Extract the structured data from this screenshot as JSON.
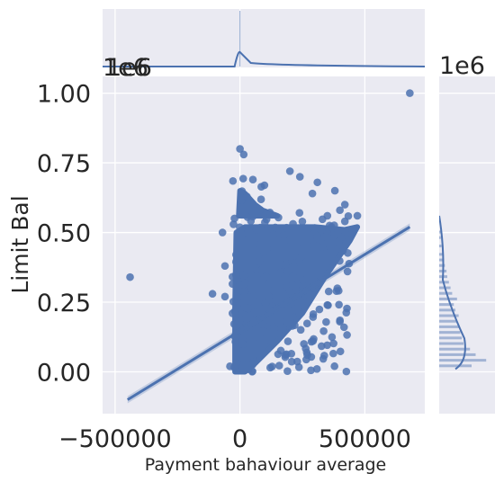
{
  "chart_data": {
    "type": "scatter",
    "title": "",
    "xlabel": "Payment bahaviour average",
    "ylabel": "Limit Bal",
    "xlim": [
      -550000,
      740000
    ],
    "ylim": [
      -150000,
      1060000
    ],
    "y_offset_label": "1e6",
    "y_display_scale": 1000000,
    "x_ticks": [
      -500000,
      0,
      500000
    ],
    "x_tick_labels": [
      "−500000",
      "0",
      "500000"
    ],
    "y_ticks": [
      0,
      250000,
      500000,
      750000,
      1000000
    ],
    "y_tick_labels": [
      "0.00",
      "0.25",
      "0.50",
      "0.75",
      "1.00"
    ],
    "marginal_x_offset_label": "1e6",
    "marginal_y_offset_label": "1e6",
    "background": "#eaeaf2",
    "grid": true,
    "point_color": "#4c72b0",
    "regression_line": {
      "x": [
        -450000,
        680000
      ],
      "y": [
        -100000,
        520000
      ]
    },
    "outliers": [
      {
        "x": 680000,
        "y": 1000000
      },
      {
        "x": -440000,
        "y": 340000
      },
      {
        "x": 0,
        "y": 800000
      },
      {
        "x": 15000,
        "y": 780000
      },
      {
        "x": 200000,
        "y": 720000
      },
      {
        "x": 240000,
        "y": 700000
      },
      {
        "x": 310000,
        "y": 680000
      },
      {
        "x": 380000,
        "y": 650000
      },
      {
        "x": 290000,
        "y": 640000
      },
      {
        "x": 420000,
        "y": 600000
      },
      {
        "x": 470000,
        "y": 560000
      },
      {
        "x": 400000,
        "y": 580000
      },
      {
        "x": 350000,
        "y": 560000
      },
      {
        "x": 420000,
        "y": 540000
      },
      {
        "x": -70000,
        "y": 500000
      },
      {
        "x": -60000,
        "y": 380000
      },
      {
        "x": -110000,
        "y": 280000
      },
      {
        "x": -60000,
        "y": 270000
      },
      {
        "x": -30000,
        "y": 210000
      },
      {
        "x": -40000,
        "y": 20000
      },
      {
        "x": 350000,
        "y": 240000
      },
      {
        "x": 400000,
        "y": 180000
      },
      {
        "x": 390000,
        "y": 300000
      },
      {
        "x": 300000,
        "y": 300000
      }
    ]
  }
}
